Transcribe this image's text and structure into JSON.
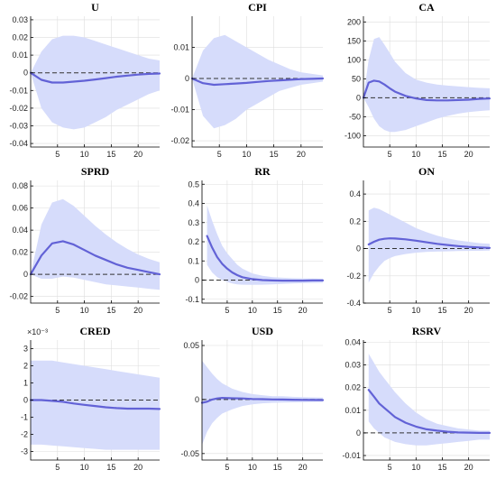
{
  "colors": {
    "band": "#d6dcfb",
    "line": "#6262d6",
    "zero": "#333333",
    "grid": "#dedede"
  },
  "chart_data": [
    {
      "type": "area",
      "title": "U",
      "exponent": "",
      "xticks": [
        5,
        10,
        15,
        20
      ],
      "xlim": [
        0,
        24
      ],
      "yticks": [
        0.03,
        0.02,
        0.01,
        0,
        -0.01,
        -0.02,
        -0.03,
        -0.04
      ],
      "ytick_labels": [
        "0.03",
        "0.02",
        "0.01",
        "0",
        "-0.01",
        "-0.02",
        "-0.03",
        "-0.04"
      ],
      "ylim": [
        -0.042,
        0.032
      ],
      "grid": true,
      "zero_line": true,
      "x": [
        0,
        2,
        4,
        6,
        8,
        10,
        12,
        14,
        16,
        18,
        20,
        22,
        24
      ],
      "irf": [
        0,
        -0.004,
        -0.0055,
        -0.0055,
        -0.005,
        -0.0045,
        -0.0038,
        -0.003,
        -0.0022,
        -0.0016,
        -0.001,
        -0.0006,
        -0.0004
      ],
      "upper": [
        0,
        0.012,
        0.019,
        0.021,
        0.021,
        0.02,
        0.018,
        0.016,
        0.014,
        0.012,
        0.01,
        0.008,
        0.007
      ],
      "lower": [
        0,
        -0.02,
        -0.028,
        -0.031,
        -0.032,
        -0.031,
        -0.028,
        -0.025,
        -0.021,
        -0.018,
        -0.015,
        -0.012,
        -0.01
      ]
    },
    {
      "type": "area",
      "title": "CPI",
      "exponent": "",
      "xticks": [
        5,
        10,
        15,
        20
      ],
      "xlim": [
        0,
        24
      ],
      "yticks": [
        0.01,
        0,
        -0.01,
        -0.02
      ],
      "ytick_labels": [
        "0.01",
        "0",
        "-0.01",
        "-0.02"
      ],
      "ylim": [
        -0.022,
        0.02
      ],
      "grid": true,
      "zero_line": true,
      "x": [
        0,
        2,
        4,
        6,
        8,
        10,
        12,
        14,
        16,
        18,
        20,
        22,
        24
      ],
      "irf": [
        0,
        -0.0015,
        -0.002,
        -0.0018,
        -0.0016,
        -0.0014,
        -0.0011,
        -0.0008,
        -0.0006,
        -0.0004,
        -0.0002,
        -0.0001,
        0
      ],
      "upper": [
        0,
        0.009,
        0.013,
        0.014,
        0.012,
        0.01,
        0.008,
        0.006,
        0.0045,
        0.003,
        0.002,
        0.0015,
        0.001
      ],
      "lower": [
        0,
        -0.012,
        -0.016,
        -0.015,
        -0.013,
        -0.01,
        -0.008,
        -0.006,
        -0.004,
        -0.003,
        -0.002,
        -0.0015,
        -0.001
      ]
    },
    {
      "type": "area",
      "title": "CA",
      "exponent": "",
      "xticks": [
        5,
        10,
        15,
        20
      ],
      "xlim": [
        0,
        24
      ],
      "yticks": [
        200,
        150,
        100,
        50,
        0,
        -50,
        -100
      ],
      "ytick_labels": [
        "200",
        "150",
        "100",
        "50",
        "0",
        "-50",
        "-100"
      ],
      "ylim": [
        -130,
        215
      ],
      "grid": true,
      "zero_line": true,
      "x": [
        0,
        1,
        2,
        3,
        4,
        5,
        6,
        8,
        10,
        12,
        14,
        16,
        18,
        20,
        22,
        24
      ],
      "irf": [
        0,
        40,
        45,
        43,
        35,
        25,
        16,
        5,
        -2,
        -6,
        -7,
        -7,
        -6,
        -5,
        -3,
        -2
      ],
      "upper": [
        0,
        100,
        155,
        160,
        140,
        118,
        95,
        65,
        48,
        40,
        35,
        32,
        30,
        28,
        26,
        25
      ],
      "lower": [
        0,
        -25,
        -55,
        -75,
        -85,
        -90,
        -90,
        -85,
        -75,
        -65,
        -55,
        -48,
        -42,
        -38,
        -35,
        -33
      ]
    },
    {
      "type": "area",
      "title": "SPRD",
      "exponent": "",
      "xticks": [
        5,
        10,
        15,
        20
      ],
      "xlim": [
        0,
        24
      ],
      "yticks": [
        0.08,
        0.06,
        0.04,
        0.02,
        0,
        -0.02
      ],
      "ytick_labels": [
        "0.08",
        "0.06",
        "0.04",
        "0.02",
        "0",
        "-0.02"
      ],
      "ylim": [
        -0.026,
        0.085
      ],
      "grid": true,
      "zero_line": true,
      "x": [
        0,
        2,
        4,
        6,
        8,
        10,
        12,
        14,
        16,
        18,
        20,
        22,
        24
      ],
      "irf": [
        0,
        0.017,
        0.028,
        0.03,
        0.027,
        0.022,
        0.017,
        0.013,
        0.009,
        0.006,
        0.004,
        0.002,
        0
      ],
      "upper": [
        0,
        0.045,
        0.065,
        0.068,
        0.062,
        0.053,
        0.044,
        0.036,
        0.029,
        0.023,
        0.018,
        0.014,
        0.011
      ],
      "lower": [
        0,
        -0.004,
        -0.004,
        -0.002,
        -0.003,
        -0.005,
        -0.007,
        -0.009,
        -0.01,
        -0.011,
        -0.012,
        -0.013,
        -0.014
      ]
    },
    {
      "type": "area",
      "title": "RR",
      "exponent": "",
      "xticks": [
        5,
        10,
        15,
        20
      ],
      "xlim": [
        0,
        24
      ],
      "yticks": [
        0.5,
        0.4,
        0.3,
        0.2,
        0.1,
        0,
        -0.1
      ],
      "ytick_labels": [
        "0.5",
        "0.4",
        "0.3",
        "0.2",
        "0.1",
        "0",
        "-0.1"
      ],
      "ylim": [
        -0.12,
        0.52
      ],
      "grid": true,
      "zero_line": true,
      "x": [
        1,
        2,
        3,
        4,
        5,
        6,
        7,
        8,
        10,
        12,
        14,
        16,
        18,
        20,
        22,
        24
      ],
      "irf": [
        0.23,
        0.17,
        0.12,
        0.085,
        0.06,
        0.04,
        0.026,
        0.015,
        0.005,
        0,
        -0.002,
        -0.003,
        -0.003,
        -0.003,
        -0.002,
        -0.002
      ],
      "upper": [
        0.39,
        0.31,
        0.24,
        0.18,
        0.14,
        0.11,
        0.08,
        0.06,
        0.035,
        0.022,
        0.015,
        0.012,
        0.01,
        0.009,
        0.008,
        0.007
      ],
      "lower": [
        0.08,
        0.04,
        0.015,
        0,
        -0.01,
        -0.018,
        -0.022,
        -0.024,
        -0.025,
        -0.024,
        -0.022,
        -0.02,
        -0.018,
        -0.016,
        -0.015,
        -0.014
      ]
    },
    {
      "type": "area",
      "title": "ON",
      "exponent": "",
      "xticks": [
        5,
        10,
        15,
        20
      ],
      "xlim": [
        0,
        24
      ],
      "yticks": [
        0.4,
        0.2,
        0,
        -0.2,
        -0.4
      ],
      "ytick_labels": [
        "0.4",
        "0.2",
        "0",
        "-0.2",
        "-0.4"
      ],
      "ylim": [
        -0.4,
        0.5
      ],
      "grid": true,
      "zero_line": true,
      "x": [
        1,
        2,
        3,
        4,
        5,
        6,
        8,
        10,
        12,
        14,
        16,
        18,
        20,
        22,
        24
      ],
      "irf": [
        0.03,
        0.05,
        0.065,
        0.072,
        0.075,
        0.074,
        0.068,
        0.058,
        0.046,
        0.035,
        0.026,
        0.018,
        0.012,
        0.008,
        0.005
      ],
      "upper": [
        0.28,
        0.3,
        0.29,
        0.27,
        0.25,
        0.23,
        0.19,
        0.15,
        0.12,
        0.095,
        0.075,
        0.06,
        0.05,
        0.04,
        0.035
      ],
      "lower": [
        -0.25,
        -0.18,
        -0.13,
        -0.09,
        -0.07,
        -0.055,
        -0.04,
        -0.03,
        -0.025,
        -0.022,
        -0.02,
        -0.018,
        -0.017,
        -0.016,
        -0.015
      ]
    },
    {
      "type": "area",
      "title": "CRED",
      "exponent": "×10⁻³",
      "xticks": [
        5,
        10,
        15,
        20
      ],
      "xlim": [
        0,
        24
      ],
      "yticks": [
        3,
        2,
        1,
        0,
        -1,
        -2,
        -3
      ],
      "ytick_labels": [
        "3",
        "2",
        "1",
        "0",
        "-1",
        "-2",
        "-3"
      ],
      "ylim": [
        -3.5,
        3.5
      ],
      "grid": true,
      "zero_line": true,
      "x": [
        0,
        2,
        4,
        6,
        8,
        10,
        12,
        14,
        16,
        18,
        20,
        22,
        24
      ],
      "irf": [
        0,
        0,
        -0.05,
        -0.1,
        -0.2,
        -0.28,
        -0.35,
        -0.42,
        -0.47,
        -0.5,
        -0.5,
        -0.5,
        -0.52
      ],
      "upper": [
        2.3,
        2.3,
        2.3,
        2.2,
        2.1,
        2.0,
        1.9,
        1.8,
        1.7,
        1.6,
        1.5,
        1.4,
        1.3
      ],
      "lower": [
        -2.6,
        -2.6,
        -2.65,
        -2.7,
        -2.75,
        -2.8,
        -2.85,
        -2.9,
        -2.9,
        -2.9,
        -2.9,
        -2.9,
        -2.9
      ]
    },
    {
      "type": "area",
      "title": "USD",
      "exponent": "",
      "xticks": [
        5,
        10,
        15,
        20
      ],
      "xlim": [
        0,
        24
      ],
      "yticks": [
        0.05,
        0,
        -0.05
      ],
      "ytick_labels": [
        "0.05",
        "0",
        "-0.05"
      ],
      "ylim": [
        -0.056,
        0.055
      ],
      "grid": true,
      "zero_line": true,
      "x": [
        0,
        1,
        2,
        3,
        4,
        6,
        8,
        10,
        12,
        14,
        16,
        18,
        20,
        22,
        24
      ],
      "irf": [
        -0.003,
        -0.002,
        0,
        0.001,
        0.0015,
        0.0012,
        0.001,
        0.0005,
        0.0003,
        0.0001,
        0,
        -0.0002,
        -0.0003,
        -0.0004,
        -0.0005
      ],
      "upper": [
        0.036,
        0.03,
        0.024,
        0.019,
        0.015,
        0.01,
        0.007,
        0.005,
        0.004,
        0.003,
        0.003,
        0.0025,
        0.0022,
        0.002,
        0.0018
      ],
      "lower": [
        -0.042,
        -0.03,
        -0.022,
        -0.017,
        -0.013,
        -0.009,
        -0.006,
        -0.0045,
        -0.0035,
        -0.003,
        -0.0028,
        -0.0026,
        -0.0024,
        -0.0022,
        -0.002
      ]
    },
    {
      "type": "area",
      "title": "RSRV",
      "exponent": "",
      "xticks": [
        5,
        10,
        15,
        20
      ],
      "xlim": [
        0,
        24
      ],
      "yticks": [
        0.04,
        0.03,
        0.02,
        0.01,
        0,
        -0.01
      ],
      "ytick_labels": [
        "0.04",
        "0.03",
        "0.02",
        "0.01",
        "0",
        "-0.01"
      ],
      "ylim": [
        -0.012,
        0.041
      ],
      "grid": true,
      "zero_line": true,
      "x": [
        1,
        2,
        3,
        4,
        5,
        6,
        8,
        10,
        12,
        14,
        16,
        18,
        20,
        22,
        24
      ],
      "irf": [
        0.019,
        0.016,
        0.013,
        0.011,
        0.009,
        0.007,
        0.0045,
        0.0028,
        0.0016,
        0.001,
        0.0005,
        0.0002,
        0.0001,
        0,
        0
      ],
      "upper": [
        0.035,
        0.031,
        0.027,
        0.024,
        0.021,
        0.018,
        0.013,
        0.009,
        0.006,
        0.004,
        0.003,
        0.002,
        0.0015,
        0.001,
        0.001
      ],
      "lower": [
        0.005,
        0.002,
        0,
        -0.002,
        -0.003,
        -0.004,
        -0.005,
        -0.0055,
        -0.0055,
        -0.005,
        -0.0045,
        -0.004,
        -0.0035,
        -0.003,
        -0.003
      ]
    }
  ]
}
